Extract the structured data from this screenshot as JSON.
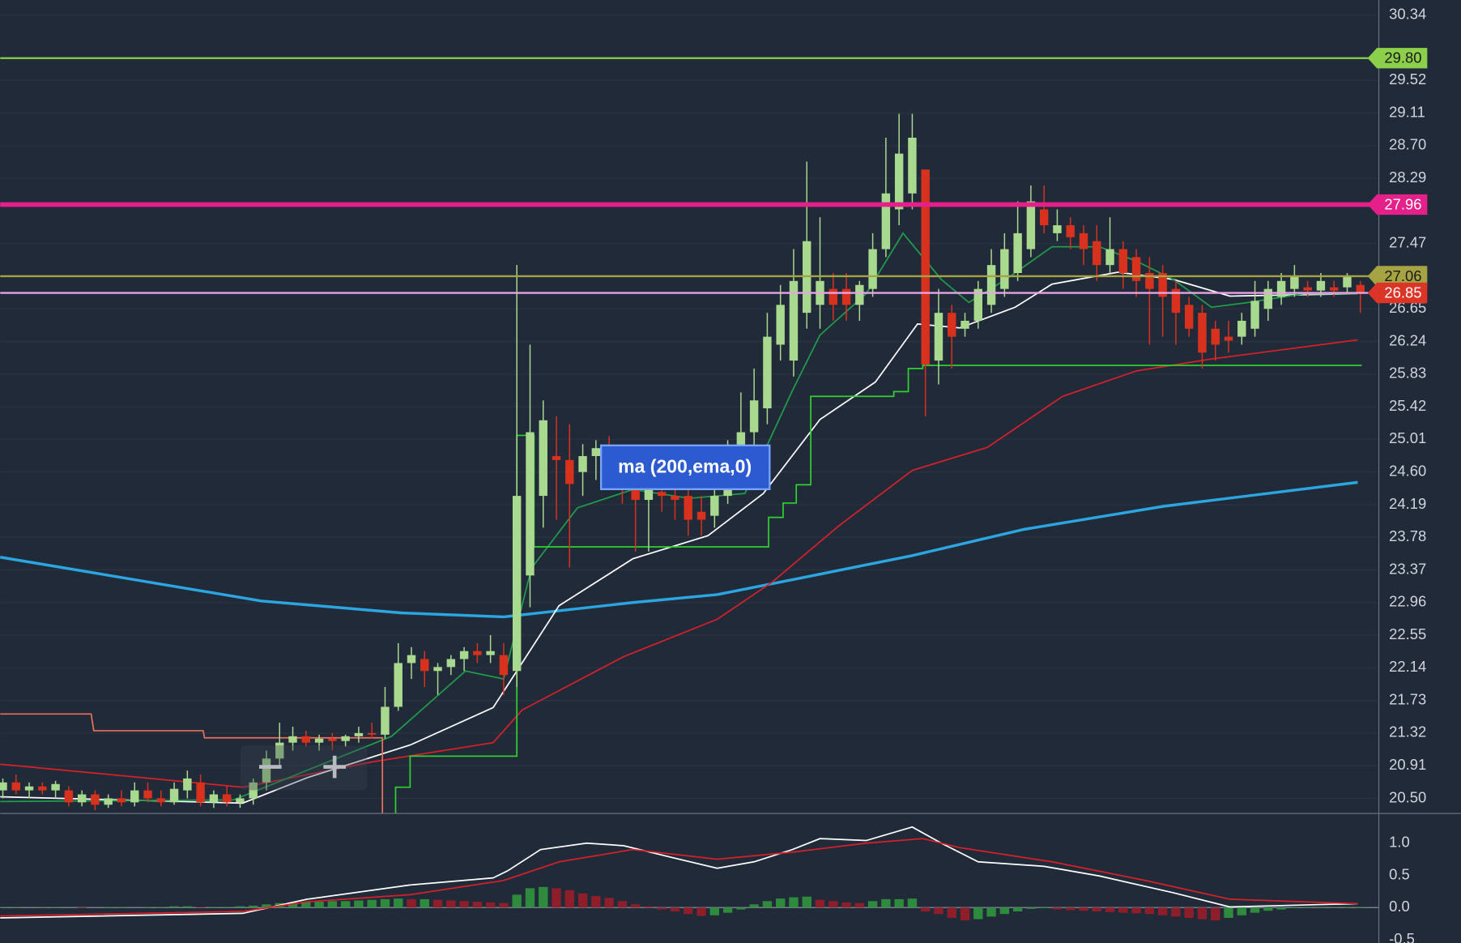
{
  "chart_data": [
    {
      "type": "candlestick",
      "up_color": "#a8d98e",
      "down_color": "#d8321f",
      "xlim": [
        -0.2,
        104.4
      ],
      "ylim": [
        20.31,
        30.53
      ],
      "yticks": [
        30.34,
        29.52,
        29.11,
        {
          "value": 28.7,
          "label": "28.70"
        },
        28.29,
        27.47,
        26.65,
        26.24,
        25.83,
        25.42,
        25.01,
        {
          "value": 24.6,
          "label": "24.60"
        },
        24.19,
        23.78,
        23.37,
        22.96,
        22.55,
        22.14,
        21.73,
        21.32,
        20.91,
        {
          "value": 20.5,
          "label": "20.50"
        }
      ],
      "grid": true,
      "ohlc": [
        [
          20.6,
          20.75,
          20.5,
          20.7
        ],
        [
          20.7,
          20.8,
          20.55,
          20.6
        ],
        [
          20.6,
          20.7,
          20.5,
          20.65
        ],
        [
          20.65,
          20.7,
          20.55,
          20.6
        ],
        [
          20.6,
          20.72,
          20.5,
          20.68
        ],
        [
          20.6,
          20.65,
          20.4,
          20.45
        ],
        [
          20.45,
          20.6,
          20.4,
          20.55
        ],
        [
          20.55,
          20.6,
          20.35,
          20.42
        ],
        [
          20.42,
          20.55,
          20.38,
          20.5
        ],
        [
          20.5,
          20.6,
          20.4,
          20.45
        ],
        [
          20.45,
          20.7,
          20.4,
          20.6
        ],
        [
          20.6,
          20.7,
          20.45,
          20.5
        ],
        [
          20.5,
          20.6,
          20.4,
          20.45
        ],
        [
          20.45,
          20.7,
          20.42,
          20.62
        ],
        [
          20.6,
          20.85,
          20.5,
          20.75
        ],
        [
          20.7,
          20.8,
          20.4,
          20.45
        ],
        [
          20.45,
          20.6,
          20.38,
          20.55
        ],
        [
          20.55,
          20.65,
          20.4,
          20.45
        ],
        [
          20.45,
          20.55,
          20.38,
          20.5
        ],
        [
          20.5,
          20.75,
          20.42,
          20.7
        ],
        [
          20.7,
          21.1,
          20.6,
          21.0
        ],
        [
          21.0,
          21.45,
          20.9,
          21.2
        ],
        [
          21.2,
          21.4,
          21.1,
          21.28
        ],
        [
          21.28,
          21.35,
          21.15,
          21.2
        ],
        [
          21.2,
          21.3,
          21.1,
          21.25
        ],
        [
          21.25,
          21.32,
          21.1,
          21.22
        ],
        [
          21.22,
          21.3,
          21.15,
          21.28
        ],
        [
          21.28,
          21.4,
          21.2,
          21.32
        ],
        [
          21.32,
          21.45,
          21.25,
          21.3
        ],
        [
          21.3,
          21.9,
          21.25,
          21.65
        ],
        [
          21.65,
          22.45,
          21.6,
          22.2
        ],
        [
          22.2,
          22.4,
          22.0,
          22.3
        ],
        [
          22.25,
          22.35,
          21.9,
          22.1
        ],
        [
          22.1,
          22.2,
          21.8,
          22.15
        ],
        [
          22.15,
          22.3,
          22.05,
          22.25
        ],
        [
          22.25,
          22.4,
          22.1,
          22.35
        ],
        [
          22.35,
          22.45,
          22.2,
          22.3
        ],
        [
          22.3,
          22.55,
          22.2,
          22.35
        ],
        [
          22.3,
          22.45,
          21.8,
          22.05
        ],
        [
          22.1,
          27.2,
          21.9,
          24.3
        ],
        [
          23.3,
          26.2,
          22.9,
          25.1
        ],
        [
          24.3,
          25.5,
          23.9,
          25.25
        ],
        [
          24.8,
          25.3,
          24.0,
          24.75
        ],
        [
          24.75,
          25.2,
          23.4,
          24.45
        ],
        [
          24.6,
          24.95,
          24.3,
          24.8
        ],
        [
          24.8,
          25.0,
          24.5,
          24.9
        ],
        [
          24.9,
          25.05,
          24.6,
          24.85
        ],
        [
          24.6,
          24.9,
          24.2,
          24.5
        ],
        [
          24.45,
          24.8,
          23.6,
          24.25
        ],
        [
          24.25,
          24.5,
          23.6,
          24.4
        ],
        [
          24.35,
          24.5,
          24.1,
          24.3
        ],
        [
          24.3,
          24.45,
          24.0,
          24.25
        ],
        [
          24.3,
          24.5,
          23.8,
          24.0
        ],
        [
          24.1,
          24.3,
          23.8,
          24.0
        ],
        [
          24.05,
          24.4,
          23.9,
          24.3
        ],
        [
          24.3,
          25.0,
          24.2,
          24.8
        ],
        [
          24.7,
          25.6,
          24.5,
          25.1
        ],
        [
          25.1,
          25.9,
          24.9,
          25.5
        ],
        [
          25.4,
          26.6,
          25.2,
          26.3
        ],
        [
          26.2,
          26.95,
          26.0,
          26.7
        ],
        [
          26.0,
          27.4,
          25.8,
          27.0
        ],
        [
          26.6,
          28.5,
          26.4,
          27.5
        ],
        [
          26.7,
          27.8,
          26.4,
          27.0
        ],
        [
          26.9,
          27.1,
          26.5,
          26.7
        ],
        [
          26.9,
          27.1,
          26.5,
          26.7
        ],
        [
          26.7,
          27.0,
          26.5,
          26.95
        ],
        [
          26.9,
          27.6,
          26.8,
          27.4
        ],
        [
          27.4,
          28.8,
          27.3,
          28.1
        ],
        [
          27.9,
          29.1,
          27.7,
          28.6
        ],
        [
          28.1,
          29.1,
          27.9,
          28.8
        ],
        [
          28.4,
          28.4,
          25.3,
          25.95
        ],
        [
          26.0,
          26.9,
          25.7,
          26.6
        ],
        [
          26.6,
          26.7,
          25.9,
          26.3
        ],
        [
          26.4,
          26.6,
          26.3,
          26.5
        ],
        [
          26.5,
          27.0,
          26.4,
          26.9
        ],
        [
          26.7,
          27.4,
          26.6,
          27.2
        ],
        [
          26.9,
          27.6,
          26.8,
          27.4
        ],
        [
          27.1,
          28.0,
          27.0,
          27.6
        ],
        [
          27.4,
          28.2,
          27.3,
          28.0
        ],
        [
          27.9,
          28.2,
          27.6,
          27.7
        ],
        [
          27.6,
          27.9,
          27.5,
          27.7
        ],
        [
          27.7,
          27.8,
          27.4,
          27.55
        ],
        [
          27.6,
          27.7,
          27.2,
          27.4
        ],
        [
          27.5,
          27.7,
          27.0,
          27.2
        ],
        [
          27.2,
          27.8,
          27.1,
          27.4
        ],
        [
          27.4,
          27.5,
          26.9,
          27.1
        ],
        [
          27.3,
          27.4,
          26.8,
          27.0
        ],
        [
          27.1,
          27.3,
          26.2,
          26.9
        ],
        [
          27.1,
          27.2,
          26.3,
          26.8
        ],
        [
          26.9,
          27.0,
          26.2,
          26.6
        ],
        [
          26.7,
          26.8,
          26.3,
          26.4
        ],
        [
          26.6,
          26.7,
          25.9,
          26.1
        ],
        [
          26.4,
          26.5,
          26.0,
          26.2
        ],
        [
          26.3,
          26.5,
          26.1,
          26.25
        ],
        [
          26.3,
          26.6,
          26.2,
          26.5
        ],
        [
          26.4,
          27.0,
          26.3,
          26.75
        ],
        [
          26.65,
          27.0,
          26.5,
          26.9
        ],
        [
          26.8,
          27.1,
          26.7,
          27.0
        ],
        [
          26.9,
          27.2,
          26.8,
          27.05
        ],
        [
          26.92,
          27.0,
          26.8,
          26.88
        ],
        [
          26.88,
          27.1,
          26.8,
          27.0
        ],
        [
          26.92,
          27.0,
          26.8,
          26.88
        ],
        [
          26.92,
          27.1,
          26.85,
          27.05
        ],
        [
          26.95,
          27.0,
          26.6,
          26.85
        ]
      ],
      "lines": [
        {
          "color": "#2ba6e0",
          "x": [
            -0.2,
            19.6,
            30.2,
            38,
            47.8,
            54.2,
            60.6,
            69,
            77.5,
            88.1,
            102.8
          ],
          "values": [
            23.53,
            22.98,
            22.83,
            22.78,
            22.96,
            23.06,
            23.27,
            23.55,
            23.88,
            24.17,
            24.47
          ]
        },
        {
          "color": "#d8202a",
          "x": [
            -0.2,
            18.2,
            28.1,
            37.2,
            39.4,
            47.1,
            54.2,
            58.4,
            63.4,
            69,
            74.7,
            80.4,
            86,
            91.7,
            102.8
          ],
          "values": [
            20.93,
            20.64,
            20.96,
            21.2,
            21.61,
            22.28,
            22.75,
            23.22,
            23.92,
            24.62,
            24.91,
            25.55,
            25.87,
            26.02,
            26.26
          ]
        },
        {
          "color": "#ffffff",
          "x": [
            -0.2,
            18.2,
            23.1,
            30.9,
            37.2,
            39,
            42.2,
            47.8,
            53.5,
            57.7,
            62,
            66.2,
            69.4,
            72.6,
            76.8,
            79.6,
            84.6,
            88.8,
            93.1,
            102.8
          ],
          "values": [
            20.52,
            20.44,
            20.76,
            21.17,
            21.64,
            22.1,
            22.92,
            23.51,
            23.8,
            24.33,
            25.26,
            25.73,
            26.46,
            26.41,
            26.67,
            26.96,
            27.11,
            27.02,
            26.81,
            26.84
          ]
        },
        {
          "color": "#1f9e4a",
          "x": [
            -0.2,
            17.5,
            29.5,
            35.1,
            38,
            40.1,
            43.6,
            47.8,
            52.1,
            56.3,
            59.9,
            62,
            65.5,
            68.3,
            71.2,
            73.3,
            76.1,
            79.6,
            83.2,
            86,
            88.8,
            91.7,
            94.5,
            98.7,
            102.8
          ],
          "values": [
            20.46,
            20.48,
            21.28,
            22.1,
            22.0,
            23.39,
            24.15,
            24.38,
            24.27,
            24.33,
            25.62,
            26.32,
            26.84,
            27.6,
            27.02,
            26.73,
            27.02,
            27.43,
            27.43,
            27.25,
            27.02,
            26.67,
            26.73,
            26.84,
            26.84
          ]
        },
        {
          "color": "#2fd02f",
          "x": [
            29.8,
            29.8,
            30.9,
            30.9,
            39,
            39,
            40.3,
            40.3,
            58.1,
            58.1,
            59.2,
            59.2,
            60.2,
            60.2,
            61.3,
            61.3,
            67.6,
            67.6,
            68.7,
            68.7,
            69.8,
            69.8,
            103.1
          ],
          "values": [
            20.31,
            20.64,
            20.64,
            21.03,
            21.03,
            25.06,
            25.06,
            23.66,
            23.66,
            24.03,
            24.03,
            24.21,
            24.21,
            24.44,
            24.44,
            25.55,
            25.55,
            25.61,
            25.61,
            25.9,
            25.9,
            25.94,
            25.94
          ]
        },
        {
          "color": "#e8705c",
          "x": [
            -0.2,
            6.7,
            6.9,
            15.2,
            15.3,
            28.8,
            28.8
          ],
          "values": [
            21.56,
            21.56,
            21.35,
            21.35,
            21.26,
            21.26,
            20.31
          ]
        }
      ],
      "levels": [
        {
          "value": 29.8,
          "label": "29.80",
          "color": "#8bcf4a",
          "tag_color": "#8bcf4a",
          "text_color": "#1a1a1a"
        },
        {
          "value": 27.96,
          "label": "27.96",
          "color": "#e5208a",
          "tag_color": "#e5208a",
          "text_color": "#ffffff"
        },
        {
          "value": 27.06,
          "label": "27.06",
          "color": "#a6a343",
          "tag_color": "#a6a343",
          "text_color": "#1a1a1a"
        },
        {
          "value": 26.85,
          "label": "26.85",
          "color": "#e8a4e6",
          "tag_color": "#dc3427",
          "text_color": "#ffffff"
        }
      ],
      "annotation": "ma (200,ema,0)"
    },
    {
      "type": "macd",
      "up_color": "#2e8b3e",
      "down_color": "#8e1f2a",
      "xlim": [
        -0.2,
        104.4
      ],
      "ylim": [
        -0.55,
        1.46
      ],
      "yticks": [
        {
          "value": 1,
          "label": "1.0"
        },
        0.5,
        {
          "value": 0,
          "label": "0.0"
        },
        -0.5
      ],
      "histogram": [
        0.01,
        0.01,
        0.0,
        0.01,
        0.01,
        0.0,
        -0.01,
        0.0,
        0.01,
        0.01,
        0.0,
        0.01,
        0.01,
        0.02,
        0.02,
        0.01,
        0.01,
        0.01,
        0.02,
        0.03,
        0.05,
        0.07,
        0.08,
        0.09,
        0.09,
        0.1,
        0.1,
        0.11,
        0.12,
        0.13,
        0.14,
        0.13,
        0.13,
        0.12,
        0.11,
        0.1,
        0.09,
        0.08,
        0.07,
        0.2,
        0.3,
        0.32,
        0.3,
        0.27,
        0.22,
        0.18,
        0.15,
        0.1,
        0.05,
        0.02,
        -0.03,
        -0.06,
        -0.1,
        -0.13,
        -0.12,
        -0.08,
        -0.03,
        0.05,
        0.1,
        0.14,
        0.16,
        0.17,
        0.12,
        0.1,
        0.08,
        0.07,
        0.1,
        0.13,
        0.13,
        0.14,
        -0.06,
        -0.1,
        -0.16,
        -0.2,
        -0.18,
        -0.14,
        -0.1,
        -0.06,
        -0.02,
        -0.01,
        -0.03,
        -0.04,
        -0.05,
        -0.06,
        -0.07,
        -0.08,
        -0.09,
        -0.1,
        -0.12,
        -0.14,
        -0.16,
        -0.18,
        -0.2,
        -0.16,
        -0.12,
        -0.08,
        -0.05,
        -0.03,
        -0.01,
        0.01,
        0.01,
        0.01,
        0.01,
        0.01
      ],
      "lines": [
        {
          "color": "#ffffff",
          "x": [
            -0.2,
            18.2,
            23.1,
            30.9,
            37.2,
            38.3,
            40.8,
            44.3,
            47.1,
            50.7,
            54.2,
            57,
            59.9,
            62,
            65.5,
            69,
            71.2,
            74,
            79,
            83.2,
            88.8,
            93.1,
            98.7,
            102.8
          ],
          "values": [
            -0.16,
            -0.09,
            0.13,
            0.35,
            0.46,
            0.57,
            0.9,
            1.0,
            0.96,
            0.78,
            0.61,
            0.71,
            0.9,
            1.07,
            1.04,
            1.25,
            1.0,
            0.71,
            0.64,
            0.49,
            0.23,
            0.01,
            0.04,
            0.06
          ]
        },
        {
          "color": "#d8202a",
          "x": [
            -0.2,
            18.2,
            23.1,
            30.9,
            38,
            42.2,
            47.8,
            54.2,
            59.9,
            65.5,
            69.8,
            72.6,
            79.6,
            86.7,
            93.1,
            102.8
          ],
          "values": [
            -0.13,
            -0.06,
            0.09,
            0.2,
            0.42,
            0.71,
            0.9,
            0.75,
            0.86,
            1.0,
            1.07,
            0.93,
            0.71,
            0.42,
            0.13,
            0.06
          ]
        }
      ]
    }
  ]
}
